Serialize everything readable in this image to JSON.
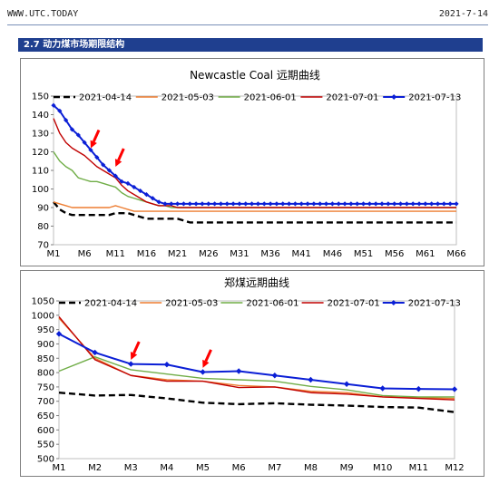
{
  "header": {
    "site": "WWW.UTC.TODAY",
    "date": "2021-7-14"
  },
  "section": {
    "title": "2.7 动力煤市场期限结构"
  },
  "chart_data": [
    {
      "type": "line",
      "title": "Newcastle Coal 远期曲线",
      "ylim": [
        70,
        150
      ],
      "yticks": [
        70,
        80,
        90,
        100,
        110,
        120,
        130,
        140,
        150
      ],
      "xtick_labels": [
        "M1",
        "M6",
        "M11",
        "M16",
        "M21",
        "M26",
        "M31",
        "M36",
        "M41",
        "M46",
        "M51",
        "M56",
        "M61",
        "M66"
      ],
      "n_points": 66,
      "legend_position": "top",
      "series": [
        {
          "name": "2021-04-14",
          "color": "#000000",
          "style": "dash",
          "values": [
            93,
            89,
            87,
            86,
            86,
            86,
            86,
            86,
            86,
            86,
            87,
            87,
            87,
            86,
            85,
            84,
            84,
            84,
            84,
            84,
            84,
            83,
            82,
            82,
            82,
            82,
            82,
            82,
            82,
            82,
            82,
            82,
            82,
            82,
            82,
            82,
            82,
            82,
            82,
            82,
            82,
            82,
            82,
            82,
            82,
            82,
            82,
            82,
            82,
            82,
            82,
            82,
            82,
            82,
            82,
            82,
            82,
            82,
            82,
            82,
            82,
            82,
            82,
            82,
            82,
            82
          ]
        },
        {
          "name": "2021-05-03",
          "color": "#ed7d31",
          "style": "solid",
          "values": [
            93,
            92,
            91,
            90,
            90,
            90,
            90,
            90,
            90,
            90,
            91,
            90,
            89,
            88,
            88,
            88,
            88,
            88,
            88,
            88,
            88,
            88,
            88,
            88,
            88,
            88,
            88,
            88,
            88,
            88,
            88,
            88,
            88,
            88,
            88,
            88,
            88,
            88,
            88,
            88,
            88,
            88,
            88,
            88,
            88,
            88,
            88,
            88,
            88,
            88,
            88,
            88,
            88,
            88,
            88,
            88,
            88,
            88,
            88,
            88,
            88,
            88,
            88,
            88,
            88,
            88
          ]
        },
        {
          "name": "2021-06-01",
          "color": "#70ad47",
          "style": "solid",
          "values": [
            120,
            115,
            112,
            110,
            106,
            105,
            104,
            104,
            103,
            102,
            101,
            98,
            96,
            95,
            94,
            93,
            92,
            91,
            91,
            90,
            90,
            90,
            90,
            90,
            90,
            90,
            90,
            90,
            90,
            90,
            90,
            90,
            90,
            90,
            90,
            90,
            90,
            90,
            90,
            90,
            90,
            90,
            90,
            90,
            90,
            90,
            90,
            90,
            90,
            90,
            90,
            90,
            90,
            90,
            90,
            90,
            90,
            90,
            90,
            90,
            90,
            90,
            90,
            90,
            90,
            90
          ]
        },
        {
          "name": "2021-07-01",
          "color": "#c00000",
          "style": "solid",
          "values": [
            138,
            130,
            125,
            122,
            120,
            118,
            115,
            112,
            110,
            108,
            106,
            102,
            99,
            97,
            95,
            93,
            92,
            91,
            91,
            91,
            90,
            90,
            90,
            90,
            90,
            90,
            90,
            90,
            90,
            90,
            90,
            90,
            90,
            90,
            90,
            90,
            90,
            90,
            90,
            90,
            90,
            90,
            90,
            90,
            90,
            90,
            90,
            90,
            90,
            90,
            90,
            90,
            90,
            90,
            90,
            90,
            90,
            90,
            90,
            90,
            90,
            90,
            90,
            90,
            90,
            90
          ]
        },
        {
          "name": "2021-07-13",
          "color": "#0b1fd6",
          "style": "solid-marker",
          "values": [
            145,
            142,
            137,
            132,
            129,
            125,
            121,
            117,
            113,
            110,
            107,
            104,
            103,
            101,
            99,
            97,
            95,
            93,
            92,
            92,
            92,
            92,
            92,
            92,
            92,
            92,
            92,
            92,
            92,
            92,
            92,
            92,
            92,
            92,
            92,
            92,
            92,
            92,
            92,
            92,
            92,
            92,
            92,
            92,
            92,
            92,
            92,
            92,
            92,
            92,
            92,
            92,
            92,
            92,
            92,
            92,
            92,
            92,
            92,
            92,
            92,
            92,
            92,
            92,
            92,
            92
          ]
        }
      ],
      "annotations": [
        {
          "type": "arrow",
          "color": "#ff0000",
          "target_x": 7,
          "target_y": 120
        },
        {
          "type": "arrow",
          "color": "#ff0000",
          "target_x": 11,
          "target_y": 110
        }
      ]
    },
    {
      "type": "line",
      "title": "郑煤远期曲线",
      "ylim": [
        500,
        1050
      ],
      "yticks": [
        500,
        550,
        600,
        650,
        700,
        750,
        800,
        850,
        900,
        950,
        1000,
        1050
      ],
      "categories": [
        "M1",
        "M2",
        "M3",
        "M4",
        "M5",
        "M6",
        "M7",
        "M8",
        "M9",
        "M10",
        "M11",
        "M12"
      ],
      "legend_position": "top",
      "series": [
        {
          "name": "2021-04-14",
          "color": "#000000",
          "style": "dash",
          "values": [
            730,
            720,
            722,
            710,
            695,
            690,
            693,
            688,
            685,
            680,
            678,
            662
          ]
        },
        {
          "name": "2021-05-03",
          "color": "#ed7d31",
          "style": "solid",
          "values": [
            990,
            850,
            790,
            775,
            770,
            755,
            750,
            735,
            730,
            715,
            712,
            710
          ]
        },
        {
          "name": "2021-06-01",
          "color": "#70ad47",
          "style": "solid",
          "values": [
            805,
            855,
            810,
            795,
            780,
            775,
            770,
            752,
            740,
            720,
            715,
            715
          ]
        },
        {
          "name": "2021-07-01",
          "color": "#c00000",
          "style": "solid",
          "values": [
            995,
            845,
            790,
            770,
            770,
            748,
            750,
            730,
            725,
            715,
            710,
            705
          ]
        },
        {
          "name": "2021-07-13",
          "color": "#0b1fd6",
          "style": "solid-marker",
          "values": [
            935,
            870,
            830,
            828,
            802,
            805,
            790,
            775,
            760,
            745,
            743,
            742
          ]
        }
      ],
      "annotations": [
        {
          "type": "arrow",
          "color": "#ff0000",
          "target_x": 3,
          "target_y": 832
        },
        {
          "type": "arrow",
          "color": "#ff0000",
          "target_x": 5,
          "target_y": 804
        }
      ]
    }
  ]
}
